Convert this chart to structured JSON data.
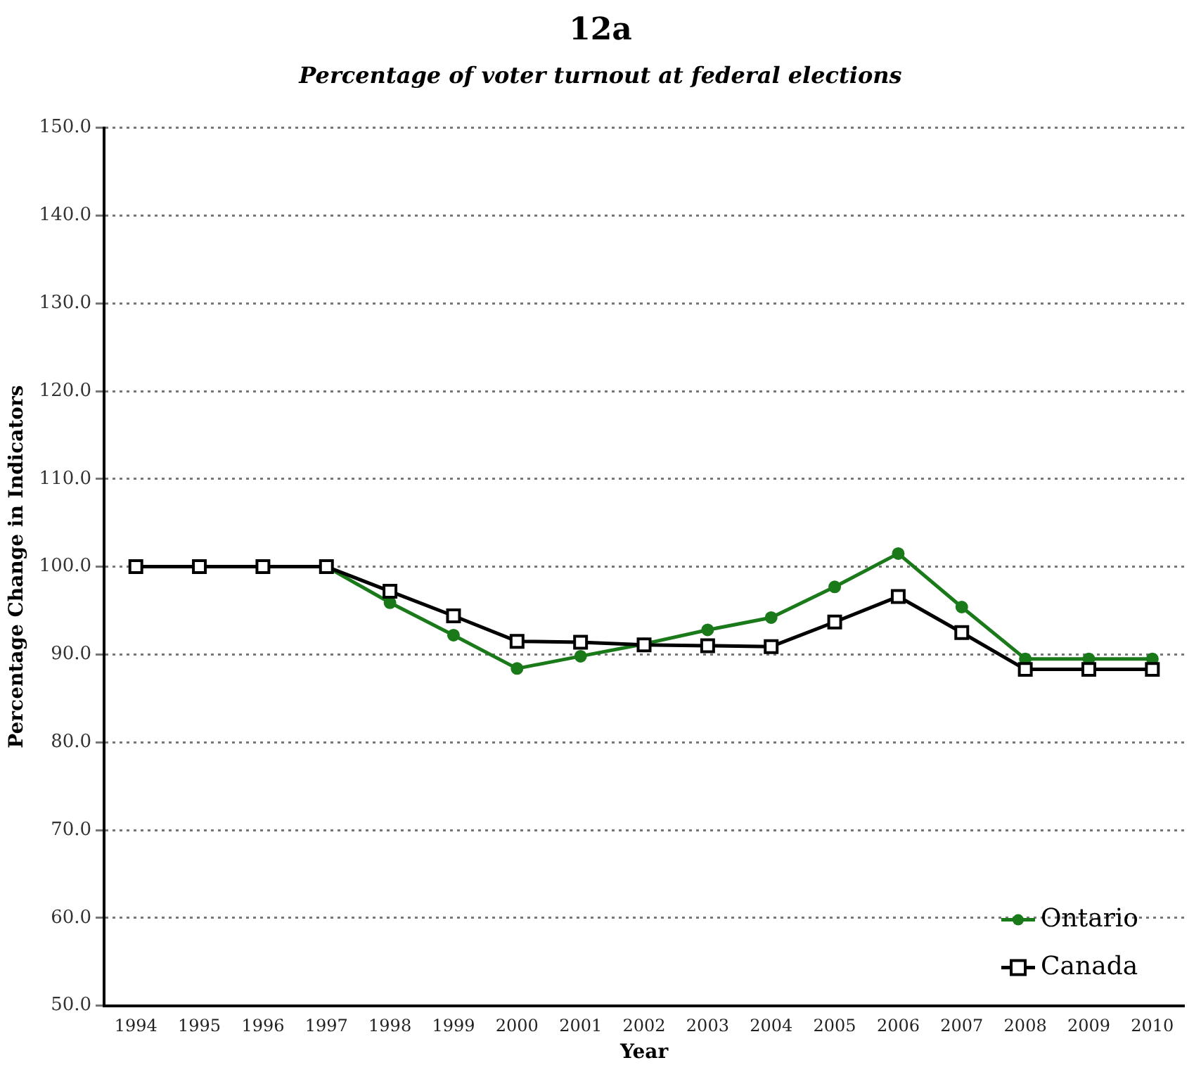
{
  "chart_data": {
    "type": "line",
    "title": "12a",
    "subtitle": "Percentage of voter turnout at federal elections",
    "xlabel": "Year",
    "ylabel": "Percentage Change in Indicators",
    "categories": [
      "1994",
      "1995",
      "1996",
      "1997",
      "1998",
      "1999",
      "2000",
      "2001",
      "2002",
      "2003",
      "2004",
      "2005",
      "2006",
      "2007",
      "2008",
      "2009",
      "2010"
    ],
    "series": [
      {
        "name": "Ontario",
        "color": "#1a7a1a",
        "marker": "circle",
        "values": [
          null,
          null,
          null,
          100,
          95.9,
          92.2,
          88.4,
          89.8,
          91.2,
          92.8,
          94.2,
          97.7,
          101.5,
          95.4,
          89.5,
          89.5,
          89.5
        ]
      },
      {
        "name": "Canada",
        "color": "#000000",
        "marker": "square",
        "values": [
          100,
          100,
          100,
          100,
          97.2,
          94.4,
          91.5,
          91.4,
          91.1,
          91.0,
          90.9,
          93.7,
          96.6,
          92.5,
          88.3,
          88.3,
          88.3
        ]
      }
    ],
    "ylim": [
      50,
      150
    ],
    "yticks": [
      {
        "value": 50,
        "label": "50.0"
      },
      {
        "value": 60,
        "label": "60.0"
      },
      {
        "value": 70,
        "label": "70.0"
      },
      {
        "value": 80,
        "label": "80.0"
      },
      {
        "value": 90,
        "label": "90.0"
      },
      {
        "value": 100,
        "label": "100.0"
      },
      {
        "value": 110,
        "label": "110.0"
      },
      {
        "value": 120,
        "label": "120.0"
      },
      {
        "value": 130,
        "label": "130.0"
      },
      {
        "value": 140,
        "label": "140.0"
      },
      {
        "value": 150,
        "label": "150.0"
      }
    ],
    "grid": "y",
    "legend": "bottom right",
    "line_style": "solid"
  }
}
